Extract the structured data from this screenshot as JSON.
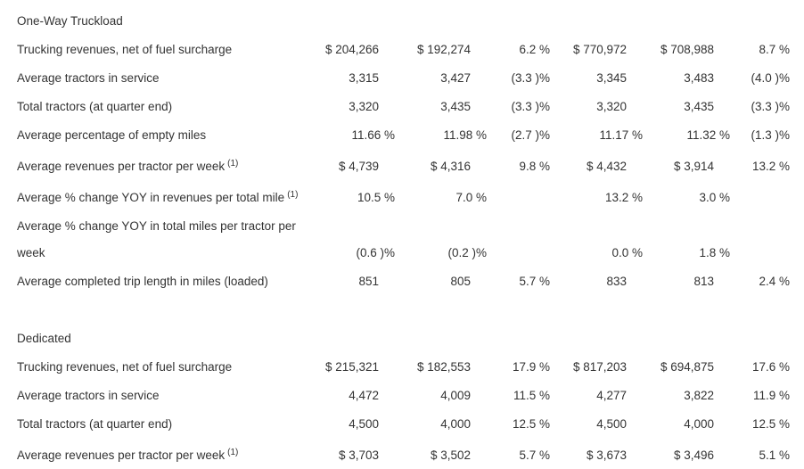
{
  "sections": [
    {
      "title": "One-Way Truckload",
      "rows": [
        {
          "label": "Trucking revenues, net of fuel surcharge",
          "cells": [
            "$ 204,266",
            "$ 192,274",
            "6.2 %",
            "$ 770,972",
            "$ 708,988",
            "8.7 %"
          ]
        },
        {
          "label": "Average tractors in service",
          "cells": [
            "3,315",
            "3,427",
            "(3.3 )%",
            "3,345",
            "3,483",
            "(4.0 )%"
          ]
        },
        {
          "label": "Total tractors (at quarter end)",
          "cells": [
            "3,320",
            "3,435",
            "(3.3 )%",
            "3,320",
            "3,435",
            "(3.3 )%"
          ]
        },
        {
          "label": "Average percentage of empty miles",
          "cells": [
            "11.66 %",
            "11.98 %",
            "(2.7 )%",
            "11.17 %",
            "11.32 %",
            "(1.3 )%"
          ]
        },
        {
          "label": "Average revenues per tractor per week",
          "note": "(1)",
          "cells": [
            "$ 4,739",
            "$ 4,316",
            "9.8 %",
            "$ 4,432",
            "$ 3,914",
            "13.2 %"
          ]
        },
        {
          "label": "Average % change YOY in revenues per total mile",
          "note": "(1)",
          "cells": [
            "10.5 %",
            "7.0 %",
            null,
            "13.2 %",
            "3.0 %",
            null
          ]
        },
        {
          "label": "Average % change YOY in total miles per tractor per week",
          "cells": [
            "(0.6 )%",
            "(0.2 )%",
            null,
            "0.0 %",
            "1.8 %",
            null
          ]
        },
        {
          "label": "Average completed trip length in miles (loaded)",
          "cells": [
            "851",
            "805",
            "5.7 %",
            "833",
            "813",
            "2.4 %"
          ]
        }
      ]
    },
    {
      "title": "Dedicated",
      "rows": [
        {
          "label": "Trucking revenues, net of fuel surcharge",
          "cells": [
            "$ 215,321",
            "$ 182,553",
            "17.9 %",
            "$ 817,203",
            "$ 694,875",
            "17.6 %"
          ]
        },
        {
          "label": "Average tractors in service",
          "cells": [
            "4,472",
            "4,009",
            "11.5 %",
            "4,277",
            "3,822",
            "11.9 %"
          ]
        },
        {
          "label": "Total tractors (at quarter end)",
          "cells": [
            "4,500",
            "4,000",
            "12.5 %",
            "4,500",
            "4,000",
            "12.5 %"
          ]
        },
        {
          "label": "Average revenues per tractor per week",
          "note": "(1)",
          "cells": [
            "$ 3,703",
            "$ 3,502",
            "5.7 %",
            "$ 3,673",
            "$ 3,496",
            "5.1 %"
          ]
        }
      ]
    }
  ]
}
